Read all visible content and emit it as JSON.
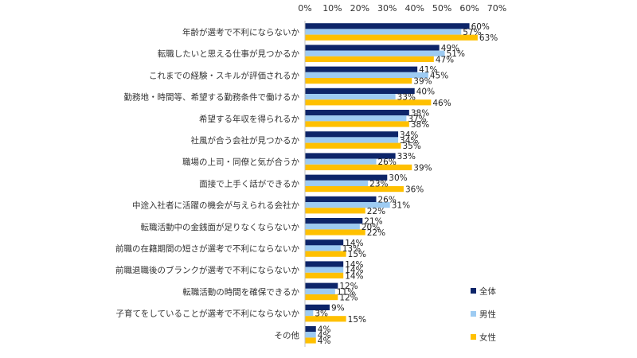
{
  "chart_data": {
    "type": "bar",
    "orientation": "horizontal",
    "title": "",
    "xlabel": "",
    "ylabel": "",
    "xlim": [
      0,
      70
    ],
    "x_ticks": [
      "0%",
      "10%",
      "20%",
      "30%",
      "40%",
      "50%",
      "60%",
      "70%"
    ],
    "x_axis_position": "top",
    "grid": false,
    "legend_position": "bottom-right",
    "value_suffix": "%",
    "categories": [
      "年齢が選考で不利にならないか",
      "転職したいと思える仕事が見つかるか",
      "これまでの経験・スキルが評価されるか",
      "勤務地・時間等、希望する勤務条件で働けるか",
      "希望する年収を得られるか",
      "社風が合う会社が見つかるか",
      "職場の上司・同僚と気が合うか",
      "面接で上手く話ができるか",
      "中途入社者に活躍の機会が与えられる会社か",
      "転職活動中の金銭面が足りなくならないか",
      "前職の在籍期間の短さが選考で不利にならないか",
      "前職退職後のブランクが選考で不利にならないか",
      "転職活動の時間を確保できるか",
      "子育てをしていることが選考で不利にならないか",
      "その他"
    ],
    "series": [
      {
        "name": "全体",
        "color": "#0d2569",
        "values": [
          60,
          49,
          41,
          40,
          38,
          34,
          33,
          30,
          26,
          21,
          14,
          14,
          12,
          9,
          4
        ]
      },
      {
        "name": "男性",
        "color": "#9dcbf2",
        "values": [
          57,
          51,
          45,
          33,
          37,
          34,
          26,
          23,
          31,
          20,
          13,
          14,
          11,
          3,
          4
        ]
      },
      {
        "name": "女性",
        "color": "#ffc000",
        "values": [
          63,
          47,
          39,
          46,
          38,
          35,
          39,
          36,
          22,
          22,
          15,
          14,
          12,
          15,
          4
        ]
      }
    ]
  }
}
